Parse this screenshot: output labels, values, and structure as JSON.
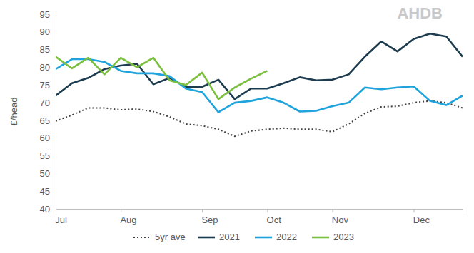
{
  "chart_data": {
    "type": "line",
    "y_label": "£/head",
    "annotations": [
      "AHDB"
    ],
    "categories": [
      "Jul",
      null,
      null,
      null,
      "Aug",
      null,
      null,
      null,
      null,
      "Sep",
      null,
      null,
      null,
      "Oct",
      null,
      null,
      null,
      "Nov",
      null,
      null,
      null,
      null,
      "Dec",
      null,
      null,
      null
    ],
    "series": [
      {
        "name": "5yr ave",
        "color": "#404040",
        "line_style": "dotted",
        "values": [
          64.8,
          66.5,
          68.5,
          68.5,
          68,
          68.2,
          67.5,
          66,
          64,
          63.5,
          62.5,
          60.5,
          62,
          62.5,
          62.8,
          62.5,
          62.5,
          61.8,
          64,
          67,
          68.8,
          69,
          70,
          70.5,
          70,
          68.5
        ]
      },
      {
        "name": "2021",
        "color": "#1d3c4f",
        "line_style": "solid",
        "values": [
          72,
          75.5,
          77,
          79.5,
          80.5,
          81,
          75.2,
          77,
          74.5,
          74.5,
          76.5,
          71,
          74,
          74,
          75.5,
          77.2,
          76.3,
          76.5,
          78,
          83,
          87.3,
          84.5,
          88,
          89.5,
          88.7,
          83
        ]
      },
      {
        "name": "2022",
        "color": "#1fa3dc",
        "line_style": "solid",
        "values": [
          79.5,
          82.3,
          82.3,
          81.5,
          79,
          78.3,
          78.3,
          77.5,
          74,
          73,
          67.3,
          70,
          70.5,
          71.5,
          70,
          67.5,
          67.7,
          69,
          70,
          74.3,
          73.8,
          74.3,
          74.6,
          70.5,
          69.3,
          72
        ]
      },
      {
        "name": "2023",
        "color": "#7bbf3f",
        "line_style": "solid",
        "values": [
          83,
          79.7,
          82.7,
          78,
          82.7,
          80,
          82.7,
          76.3,
          75,
          78.5,
          71,
          74.3,
          76.8,
          79,
          null,
          null,
          null,
          null,
          null,
          null,
          null,
          null,
          null,
          null,
          null,
          null
        ]
      }
    ],
    "ylim": [
      40,
      95
    ],
    "yticks": [
      40,
      45,
      50,
      55,
      60,
      65,
      70,
      75,
      80,
      85,
      90,
      95
    ],
    "grid": false,
    "legend": "bottom"
  }
}
